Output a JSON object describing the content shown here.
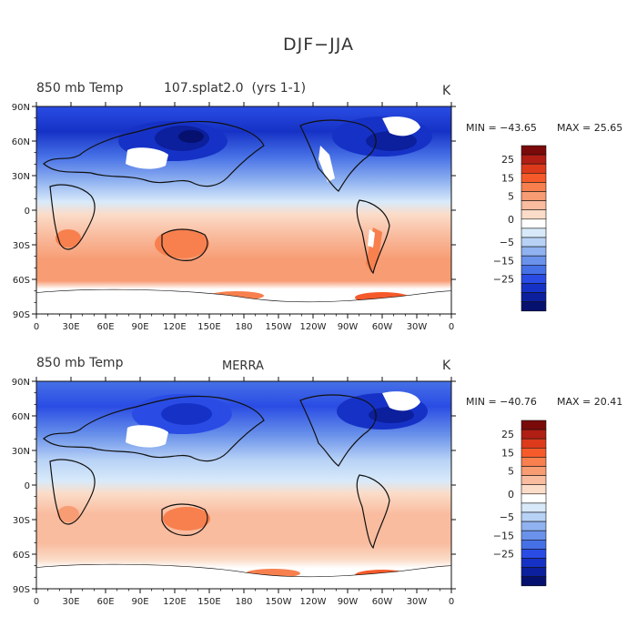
{
  "figure": {
    "title": "DJF−JJA"
  },
  "colors": {
    "scale": [
      "#7a0a0a",
      "#b01e14",
      "#dd3a1c",
      "#f65a2a",
      "#f7804e",
      "#f79c73",
      "#f9bc9f",
      "#fbdcc8",
      "#ffffff",
      "#d8eafa",
      "#b8d2f6",
      "#90b2f0",
      "#6a92ea",
      "#4670e6",
      "#2a4ce4",
      "#1632c6",
      "#0c1f9c",
      "#06106e"
    ]
  },
  "panels": [
    {
      "variable": "850 mb Temp",
      "dataset": "107.splat2.0  (yrs 1-1)",
      "units": "K",
      "min_label": "MIN = −43.65",
      "max_label": "MAX =  25.65"
    },
    {
      "variable": "850 mb Temp",
      "dataset": "MERRA",
      "units": "K",
      "min_label": "MIN = −40.76",
      "max_label": "MAX =  20.41"
    }
  ],
  "axes": {
    "lon_ticks": [
      "0",
      "30E",
      "60E",
      "90E",
      "120E",
      "150E",
      "180",
      "150W",
      "120W",
      "90W",
      "60W",
      "30W",
      "0"
    ],
    "lat_ticks": [
      "90N",
      "60N",
      "30N",
      "0",
      "30S",
      "60S",
      "90S"
    ]
  },
  "colorbar": {
    "labels": [
      "25",
      "15",
      "5",
      "0",
      "−5",
      "−15",
      "−25"
    ]
  }
}
